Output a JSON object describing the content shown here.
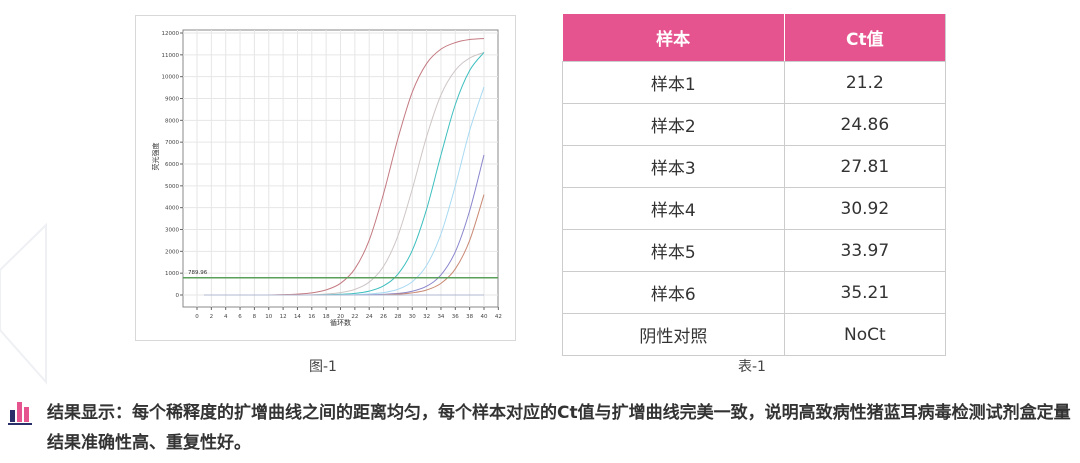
{
  "chart_data": {
    "type": "line",
    "title": "",
    "xlabel": "循环数",
    "ylabel": "荧光强度",
    "xlim": [
      -2,
      42
    ],
    "ylim": [
      -700,
      12300
    ],
    "xticks": [
      0,
      2,
      4,
      6,
      8,
      10,
      12,
      14,
      16,
      18,
      20,
      22,
      24,
      26,
      28,
      30,
      32,
      34,
      36,
      38,
      40,
      42
    ],
    "yticks": [
      0,
      1000,
      2000,
      3000,
      4000,
      5000,
      6000,
      7000,
      8000,
      9000,
      10000,
      11000,
      12000
    ],
    "grid": true,
    "threshold": {
      "value": 789.96,
      "label": "789.96",
      "color": "#5aa05a"
    },
    "x": [
      2,
      4,
      6,
      8,
      10,
      12,
      14,
      16,
      18,
      20,
      22,
      24,
      26,
      28,
      30,
      32,
      34,
      36,
      38,
      40
    ],
    "series": [
      {
        "color": "#c47a82",
        "values": [
          0,
          0,
          0,
          0,
          0,
          17,
          41,
          98,
          235,
          536,
          1200,
          2510,
          4640,
          7160,
          9290,
          10600,
          11260,
          11560,
          11700,
          11750
        ]
      },
      {
        "color": "#cfc6c6",
        "values": [
          0,
          0,
          0,
          0,
          0,
          0,
          0,
          10,
          46,
          108,
          257,
          592,
          1314,
          2703,
          4850,
          7250,
          9160,
          10290,
          10850,
          11110
        ]
      },
      {
        "color": "#3fbfbf",
        "values": [
          0,
          0,
          0,
          0,
          0,
          0,
          0,
          0,
          10,
          32,
          76,
          179,
          419,
          952,
          2040,
          3930,
          6410,
          8720,
          10280,
          11110
        ]
      },
      {
        "color": "#a8daf2",
        "values": [
          0,
          0,
          0,
          0,
          0,
          0,
          0,
          0,
          0,
          8,
          20,
          47,
          111,
          263,
          608,
          1357,
          2790,
          5000,
          7530,
          9530
        ]
      },
      {
        "color": "#8a86cc",
        "values": [
          0,
          0,
          0,
          0,
          0,
          0,
          0,
          0,
          0,
          0,
          0,
          10,
          30,
          72,
          172,
          401,
          918,
          1980,
          3860,
          6420
        ]
      },
      {
        "color": "#c98a74",
        "values": [
          0,
          0,
          0,
          0,
          0,
          0,
          0,
          0,
          0,
          0,
          0,
          0,
          10,
          41,
          98,
          229,
          534,
          1193,
          2500,
          4600
        ]
      },
      {
        "color": "#b0b8d0",
        "values": [
          0,
          0,
          0,
          0,
          0,
          0,
          0,
          0,
          0,
          0,
          0,
          0,
          0,
          0,
          0,
          0,
          0,
          0,
          0,
          0
        ]
      }
    ]
  },
  "figure_caption": "图-1",
  "table": {
    "headers": [
      "样本",
      "Ct值"
    ],
    "rows": [
      [
        "样本1",
        "21.2"
      ],
      [
        "样本2",
        "24.86"
      ],
      [
        "样本3",
        "27.81"
      ],
      [
        "样本4",
        "30.92"
      ],
      [
        "样本5",
        "33.97"
      ],
      [
        "样本6",
        "35.21"
      ],
      [
        "阴性对照",
        "NoCt"
      ]
    ],
    "header_color": "#e5548f"
  },
  "table_caption": "表-1",
  "conclusion": {
    "icon": "bar-chart-icon",
    "text": "结果显示：每个稀释度的扩增曲线之间的距离均匀，每个样本对应的Ct值与扩增曲线完美一致，说明高致病性猪蓝耳病毒检测试剂盒定量结果准确性高、重复性好。"
  }
}
